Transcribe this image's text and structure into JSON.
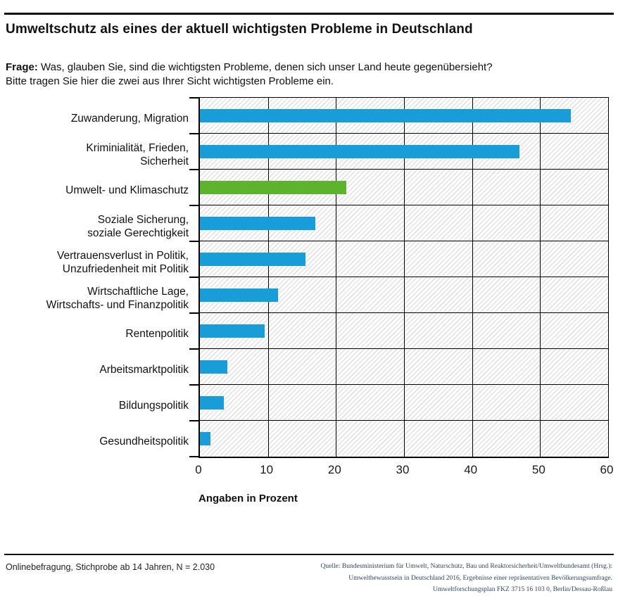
{
  "header": {
    "title": "Umweltschutz als eines der aktuell wichtigsten Probleme in Deutschland",
    "frage_label": "Frage:",
    "frage_line1": "Was, glauben Sie, sind die wichtigsten Probleme, denen sich unser Land heute gegenübersieht?",
    "frage_line2": "Bitte tragen Sie  hier die zwei aus Ihrer Sicht wichtigsten Probleme ein."
  },
  "chart_data": {
    "type": "bar",
    "orientation": "horizontal",
    "title": "Umweltschutz als eines der aktuell wichtigsten Probleme in Deutschland",
    "categories": [
      "Zuwanderung, Migration",
      "Kriminialität, Frieden,\nSicherheit",
      "Umwelt- und Klimaschutz",
      "Soziale Sicherung,\nsoziale Gerechtigkeit",
      "Vertrauensverlust in Politik,\nUnzufriedenheit mit Politik",
      "Wirtschaftliche Lage,\nWirtschafts- und Finanzpolitik",
      "Rentenpolitik",
      "Arbeitsmarktpolitik",
      "Bildungspolitik",
      "Gesundheitspolitik"
    ],
    "values": [
      54.5,
      47,
      21.5,
      17,
      15.5,
      11.5,
      9.5,
      4,
      3.5,
      1.5
    ],
    "bar_color": "#199dd9",
    "highlight_index": 2,
    "highlight_color": "#5cb32e",
    "xlabel": "Angaben in Prozent",
    "xlim": [
      0,
      60
    ],
    "xticks": [
      0,
      10,
      20,
      30,
      40,
      50,
      60
    ],
    "grid": true,
    "plot_background": "diagonal-hatch",
    "legend": "none"
  },
  "footer": {
    "left": "Onlinebefragung, Stichprobe ab 14 Jahren, N = 2.030",
    "source_lines": [
      "Quelle: Bundesministerium für Umwelt, Naturschutz, Bau und Reaktorsicherheit/Umweltbundesamt (Hrsg.):",
      "Umweltbewusstsein in Deutschland 2016, Ergebnisse einer repräsentativen Bevölkerungsumfrage.",
      "Umweltforschungsplan FKZ 3715 16 103 0, Berlin/Dessau-Roßlau"
    ]
  }
}
